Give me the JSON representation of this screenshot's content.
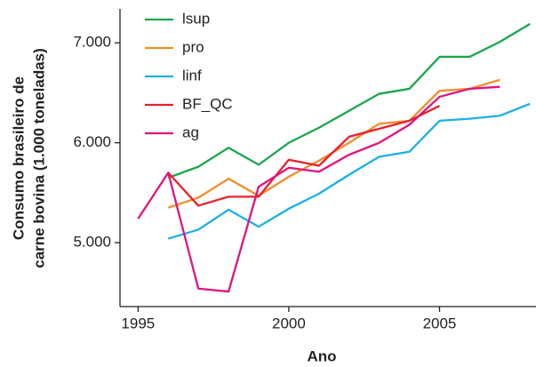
{
  "chart_data": {
    "type": "line",
    "xlabel": "Ano",
    "ylabel": [
      "Consumo brasileiro de",
      "carne bovina (1.000 toneladas)"
    ],
    "x": [
      1995,
      1996,
      1997,
      1998,
      1999,
      2000,
      2001,
      2002,
      2003,
      2004,
      2005,
      2006,
      2007,
      2008
    ],
    "series": [
      {
        "name": "lsup",
        "color": "#1aa64a",
        "values": [
          null,
          5650,
          5760,
          5950,
          5780,
          6000,
          6150,
          6320,
          6490,
          6540,
          6860,
          6860,
          7010,
          7190
        ]
      },
      {
        "name": "pro",
        "color": "#f28c28",
        "values": [
          null,
          5350,
          5450,
          5640,
          5470,
          5660,
          5820,
          6000,
          6190,
          6220,
          6520,
          6540,
          6630,
          null
        ]
      },
      {
        "name": "linf",
        "color": "#1ab0e6",
        "values": [
          null,
          5040,
          5130,
          5330,
          5160,
          5340,
          5490,
          5680,
          5860,
          5910,
          6220,
          6240,
          6270,
          6390
        ]
      },
      {
        "name": "BF_QC",
        "color": "#e8202a",
        "values": [
          null,
          5700,
          5370,
          5460,
          5460,
          5830,
          5770,
          6060,
          6140,
          6220,
          6370,
          null,
          null,
          null
        ]
      },
      {
        "name": "ag",
        "color": "#e0137f",
        "values": [
          5240,
          5700,
          4540,
          4510,
          5560,
          5750,
          5710,
          5880,
          6000,
          6180,
          6460,
          6540,
          6560,
          null
        ]
      }
    ],
    "xlim": [
      1994.4,
      2008.2
    ],
    "ylim": [
      4360,
      7340
    ],
    "xticks": [
      1995,
      2000,
      2005
    ],
    "yticks": [
      {
        "value": 5000,
        "label": "5.000"
      },
      {
        "value": 6000,
        "label": "6.000"
      },
      {
        "value": 7000,
        "label": "7.000"
      }
    ],
    "legend": "upper left"
  }
}
